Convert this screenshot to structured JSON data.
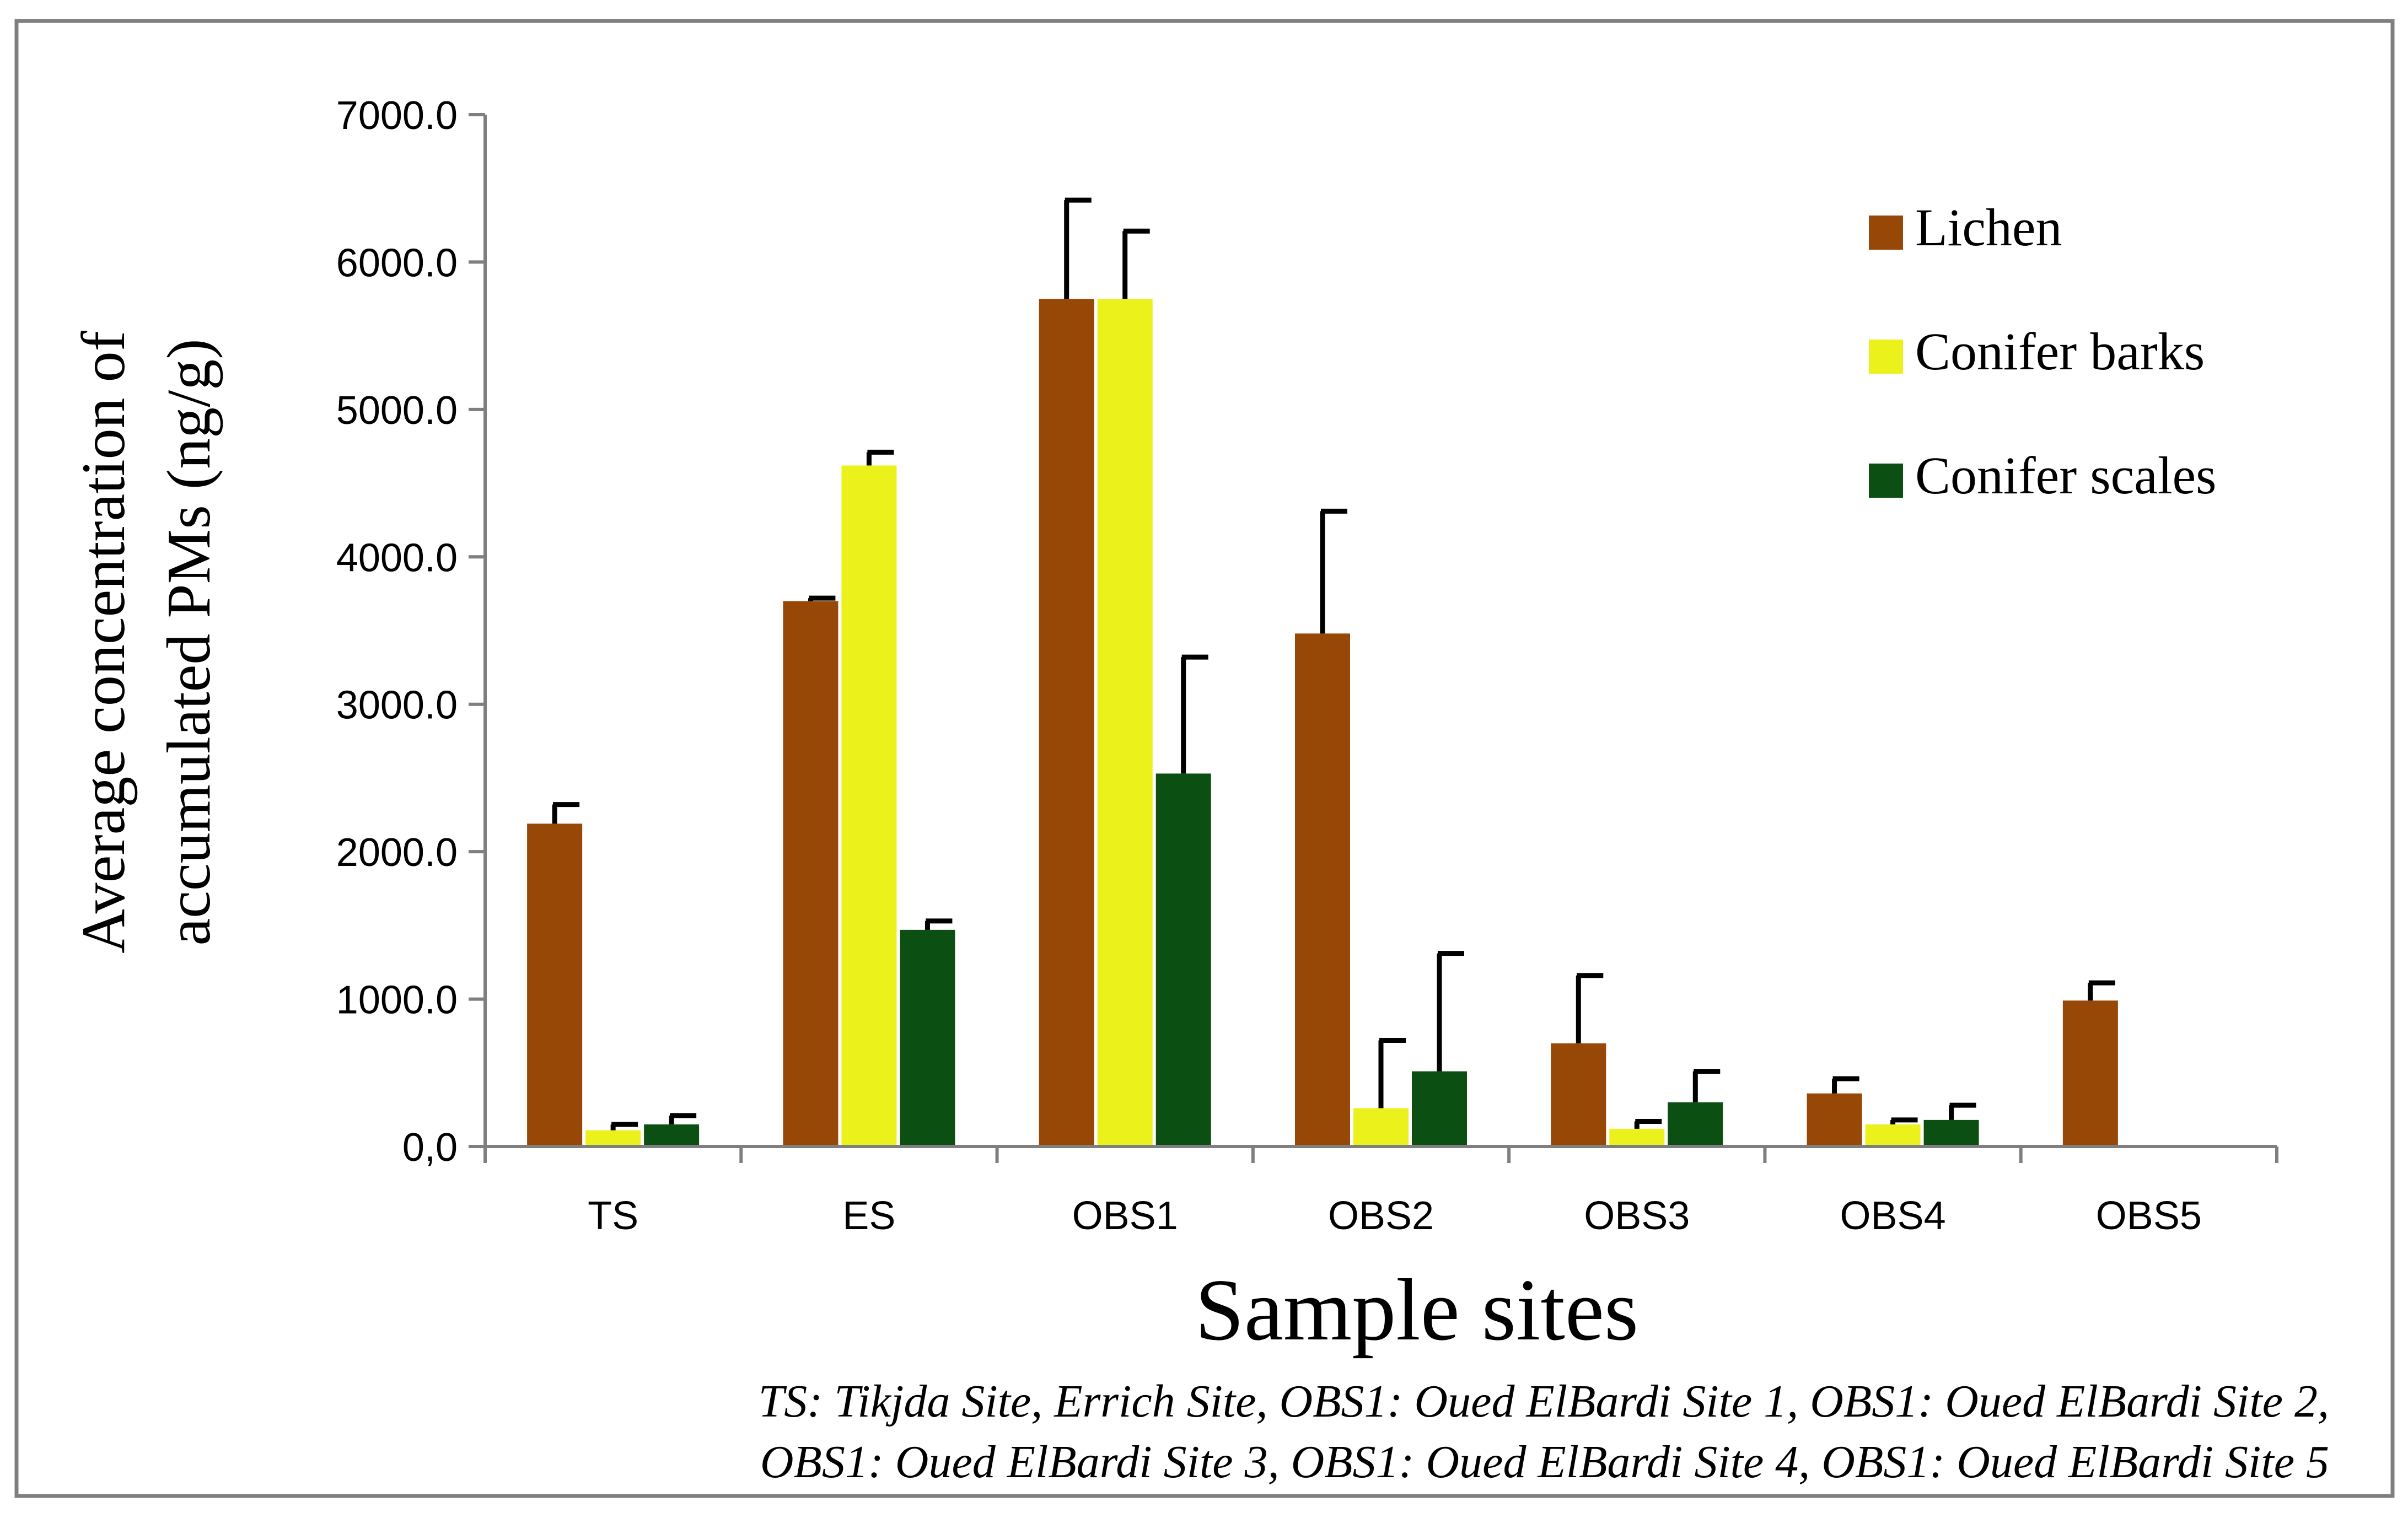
{
  "chart_data": {
    "type": "bar",
    "title": "",
    "xlabel": "Sample sites",
    "ylabel_lines": [
      "Average concentration of",
      "accumulated PMs (ng/g)"
    ],
    "ylim": [
      0,
      7000
    ],
    "yticks": [
      0,
      1000,
      2000,
      3000,
      4000,
      5000,
      6000,
      7000
    ],
    "ytick_labels": [
      "0,0",
      "1000.0",
      "2000.0",
      "3000.0",
      "4000.0",
      "5000.0",
      "6000.0",
      "7000.0"
    ],
    "categories": [
      "TS",
      "ES",
      "OBS1",
      "OBS2",
      "OBS3",
      "OBS4",
      "OBS5"
    ],
    "grid": false,
    "legend_position": "top-right",
    "series": [
      {
        "name": "Lichen",
        "color": "#974706",
        "values": [
          2190,
          3700,
          5750,
          3480,
          700,
          360,
          990
        ],
        "errors": [
          130,
          20,
          670,
          830,
          460,
          100,
          120
        ]
      },
      {
        "name": "Conifer barks",
        "color": "#ebf11b",
        "values": [
          110,
          4620,
          5750,
          260,
          120,
          150,
          null
        ],
        "errors": [
          40,
          90,
          460,
          460,
          50,
          30,
          null
        ]
      },
      {
        "name": "Conifer scales",
        "color": "#0b4f12",
        "values": [
          150,
          1470,
          2530,
          510,
          300,
          180,
          null
        ],
        "errors": [
          60,
          60,
          790,
          800,
          210,
          100,
          null
        ]
      }
    ],
    "footnote_lines": [
      "TS: Tikjda Site, Errich Site, OBS1: Oued ElBardi Site 1, OBS1: Oued ElBardi Site 2,",
      "OBS1: Oued ElBardi Site 3, OBS1: Oued ElBardi Site 4, OBS1: Oued ElBardi Site 5"
    ]
  },
  "colors": {
    "frame_border": "#7f7f7f",
    "axis": "#7f7f7f",
    "error_bar": "#000000"
  }
}
